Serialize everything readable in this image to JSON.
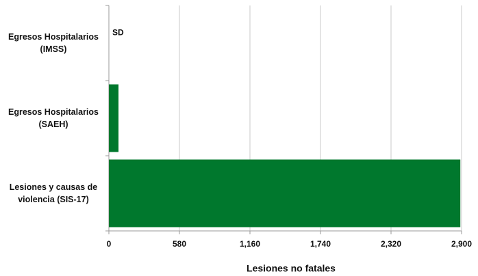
{
  "chart_data": {
    "type": "bar",
    "orientation": "horizontal",
    "categories": [
      "Egresos Hospitalarios (IMSS)",
      "Egresos Hospitalarios (SAEH)",
      "Lesiones y causas de violencia (SIS-17)"
    ],
    "values": [
      null,
      79,
      2890
    ],
    "value_labels": [
      "SD",
      null,
      null
    ],
    "color": "#00782d",
    "xlabel": "Lesiones no fatales",
    "xlim": [
      0,
      2900
    ],
    "xticks": [
      0,
      580,
      {
        "value": 1160,
        "label": "1,160"
      },
      {
        "value": 1740,
        "label": "1,740"
      },
      {
        "value": 2320,
        "label": "2,320"
      },
      {
        "value": 2900,
        "label": "2,900"
      }
    ],
    "grid": true
  }
}
